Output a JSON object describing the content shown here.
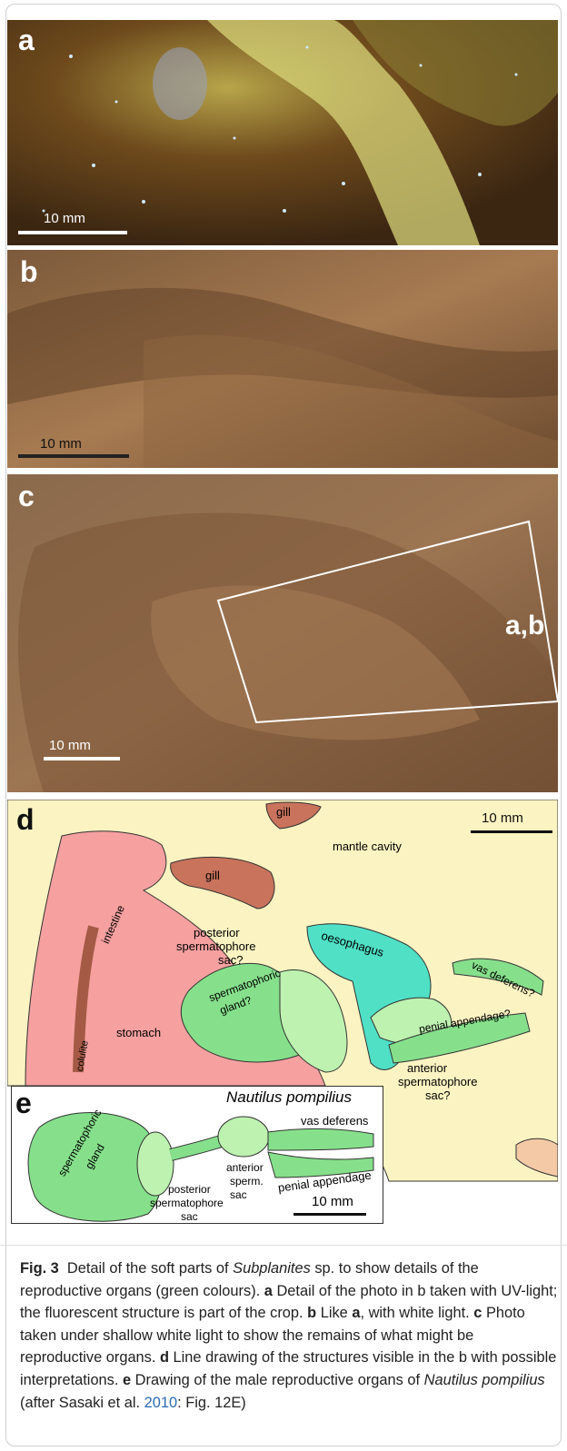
{
  "figure": {
    "panel_a": {
      "label": "a",
      "scale": "10 mm"
    },
    "panel_b": {
      "label": "b",
      "scale": "10 mm"
    },
    "panel_c": {
      "label": "c",
      "scale": "10 mm",
      "box_label": "a,b"
    },
    "panel_d": {
      "label": "d",
      "scale": "10 mm",
      "labels": {
        "gill_top": "gill",
        "mantle_cavity": "mantle cavity",
        "gill_mid": "gill",
        "intestine": "intestine",
        "posterior_1": "posterior",
        "posterior_2": "spermatophore",
        "posterior_3": "sac?",
        "oesophagus": "oesophagus",
        "vas_deferens": "vas deferens?",
        "spermatophoric_1": "spermatophoric",
        "spermatophoric_2": "gland?",
        "stomach": "stomach",
        "colulite": "colulite",
        "penial_appendage": "penial appendage?",
        "anterior_1": "anterior",
        "anterior_2": "spermatophore",
        "anterior_3": "sac?"
      }
    },
    "panel_e": {
      "label": "e",
      "title": "Nautilus pompilius",
      "scale": "10 mm",
      "labels": {
        "gland_1": "spermatophoric",
        "gland_2": "gland",
        "posterior_1": "posterior",
        "posterior_2": "spermatophore",
        "posterior_3": "sac",
        "anterior_1": "anterior",
        "anterior_2": "sperm.",
        "anterior_3": "sac",
        "vas_deferens": "vas deferens",
        "penial_appendage": "penial appendage"
      }
    }
  },
  "caption": {
    "fig": "Fig. 3",
    "t1": "Detail of the soft parts of ",
    "genus": "Subplanites",
    "t2": " sp. to show details of the reproductive organs (green colours). ",
    "a": "a",
    "t3": " Detail of the photo in b taken with UV-light; the fluorescent structure is part of the crop. ",
    "b": "b",
    "t4": " Like ",
    "a2": "a",
    "t5": ", with white light. ",
    "c": "c",
    "t6": " Photo taken under shallow white light to show the remains of what might be reproductive organs. ",
    "d": "d",
    "t7": " Line drawing of the structures visible in the b with possible interpretations. ",
    "e": "e",
    "t8": " Drawing of the male reproductive organs of ",
    "species": "Nautilus pompilius",
    "t9": " (after Sasaki et al. ",
    "year": "2010",
    "t10": ": Fig. 12E)"
  }
}
